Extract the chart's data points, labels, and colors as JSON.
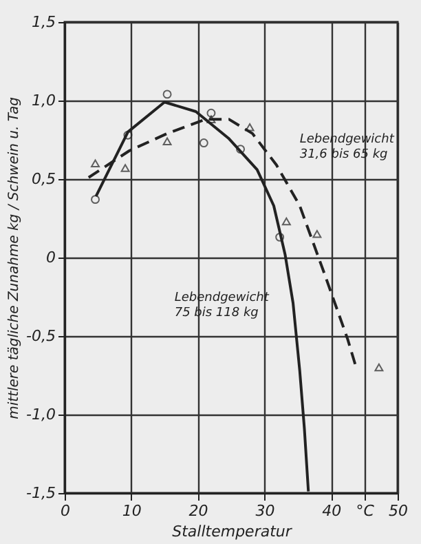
{
  "chart_data": {
    "type": "line",
    "xlabel": "Stalltemperatur",
    "ylabel": "mittlere tägliche Zunahme  kg / Schwein u. Tag",
    "xlim": [
      0,
      50
    ],
    "xticks": [
      0,
      10,
      20,
      30,
      40,
      {
        "value": 45,
        "label": "°C"
      },
      50
    ],
    "ylim": [
      -1.5,
      1.5
    ],
    "yticks": [
      {
        "value": -1.5,
        "label": "-1,5"
      },
      {
        "value": -1.0,
        "label": "-1,0"
      },
      {
        "value": -0.5,
        "label": "-0,5"
      },
      0,
      {
        "value": 0.5,
        "label": "0,5"
      },
      {
        "value": 1.0,
        "label": "1,0"
      },
      {
        "value": 1.5,
        "label": "1,5"
      }
    ],
    "grid": true,
    "series": [
      {
        "type": "line",
        "line_style": "solid",
        "marker": "none",
        "color": "#222222",
        "x": [
          4.7,
          9.5,
          15.0,
          19.7,
          24.6,
          28.9,
          31.4,
          33.1,
          34.3,
          35.3,
          36.0,
          36.6
        ],
        "values": [
          0.39,
          0.8,
          0.99,
          0.93,
          0.76,
          0.56,
          0.33,
          0.02,
          -0.29,
          -0.72,
          -1.09,
          -1.49
        ]
      },
      {
        "type": "line",
        "line_style": "dashed",
        "marker": "none",
        "color": "#222222",
        "x": [
          3.6,
          9.7,
          15.4,
          21.1,
          24.7,
          28.2,
          31.8,
          35.3,
          38.9,
          42.5,
          43.7
        ],
        "values": [
          0.51,
          0.68,
          0.79,
          0.88,
          0.88,
          0.79,
          0.59,
          0.33,
          -0.09,
          -0.52,
          -0.69
        ]
      },
      {
        "type": "scatter",
        "marker": "circle",
        "color": "#222222",
        "x": [
          4.6,
          9.5,
          15.4,
          20.9,
          22.0,
          26.4,
          32.3
        ],
        "values": [
          0.37,
          0.78,
          1.04,
          0.73,
          0.92,
          0.69,
          0.13
        ]
      },
      {
        "type": "scatter",
        "marker": "triangle",
        "color": "#222222",
        "x": [
          4.6,
          9.1,
          15.4,
          22.0,
          27.8,
          33.3,
          37.9,
          47.2
        ],
        "values": [
          0.6,
          0.57,
          0.74,
          0.88,
          0.83,
          0.23,
          0.15,
          -0.7
        ]
      }
    ],
    "annotations": [
      "Lebendgewicht\n31,6 bis 65 kg",
      "Lebendgewicht\n75 bis 118 kg"
    ]
  }
}
